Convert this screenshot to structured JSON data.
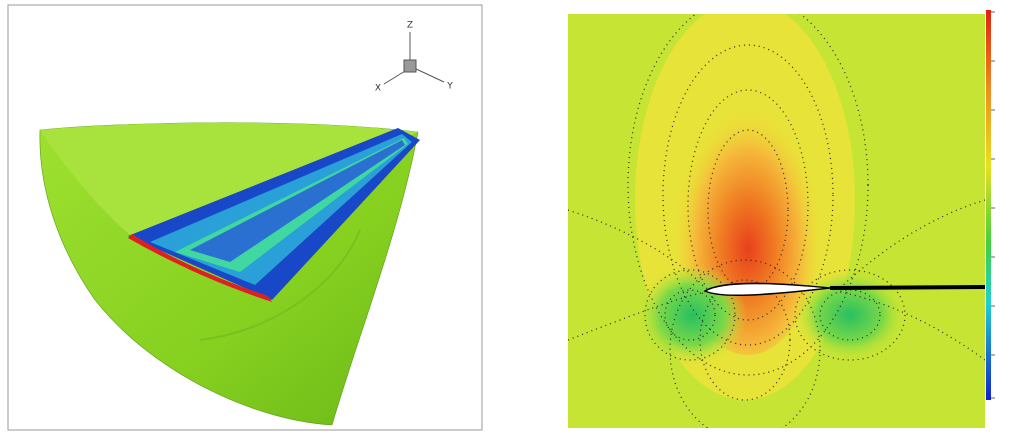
{
  "left_panel": {
    "axis_triad": {
      "z": "Z",
      "x": "X",
      "y": "Y"
    }
  }
}
